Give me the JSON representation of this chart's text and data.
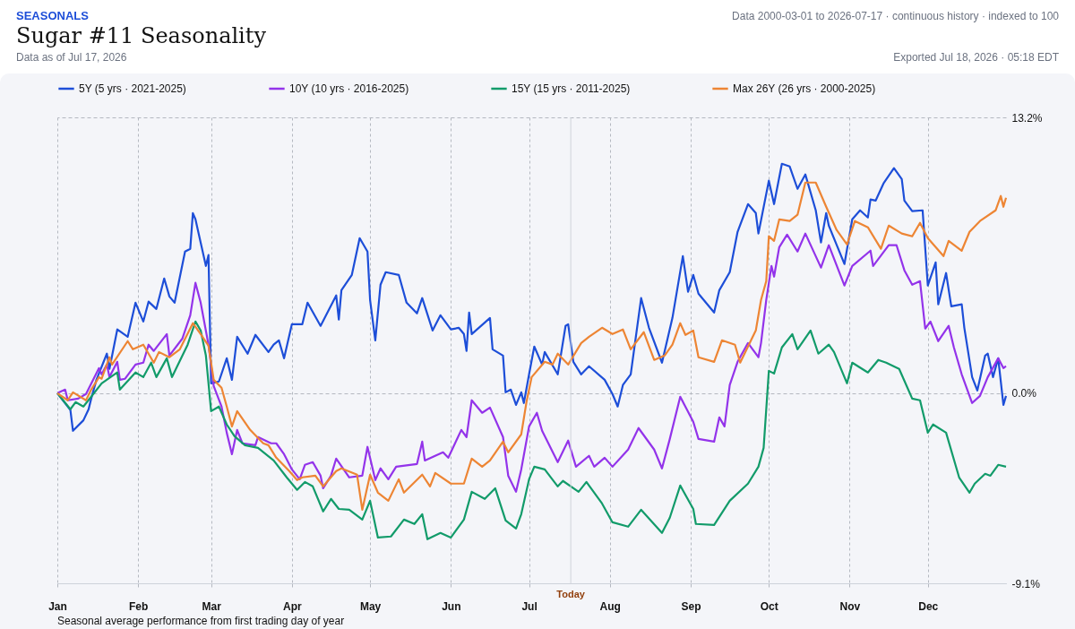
{
  "chart_data": {
    "type": "line",
    "title": "Sugar #11 Seasonality",
    "subtitle": "Data as of Jul 17, 2026",
    "annotations": [
      "SEASONALS",
      "Data 2000-03-01 to 2026-07-17 · continuous history · indexed to 100",
      "Exported Jul 18, 2026 · 05:18 EDT",
      "Seasonal average performance from first trading day of year"
    ],
    "xlim": [
      "--01-01",
      "--12-31"
    ],
    "xticks": [
      {
        "value": "--01-01",
        "label": "Jan"
      },
      {
        "value": "--02-01",
        "label": "Feb"
      },
      {
        "value": "--03-01",
        "label": "Mar"
      },
      {
        "value": "--04-01",
        "label": "Apr"
      },
      {
        "value": "--05-01",
        "label": "May"
      },
      {
        "value": "--06-01",
        "label": "Jun"
      },
      {
        "value": "--07-01",
        "label": "Jul"
      },
      {
        "value": "--08-01",
        "label": "Aug"
      },
      {
        "value": "--09-01",
        "label": "Sep"
      },
      {
        "value": "--10-01",
        "label": "Oct"
      },
      {
        "value": "--11-01",
        "label": "Nov"
      },
      {
        "value": "--12-01",
        "label": "Dec"
      }
    ],
    "ylim": [
      -9.1,
      13.2
    ],
    "yticks": [
      {
        "value": -9.1,
        "label": "-9.1%"
      },
      {
        "value": 0,
        "label": "0.0%"
      },
      {
        "value": 13.2,
        "label": "13.2%"
      }
    ],
    "grid": true,
    "legend": "top left",
    "ref_lines": [
      {
        "axis": "x",
        "value": "--07-17",
        "label": "Today"
      }
    ],
    "series": [
      {
        "name": "5Y (5 yrs · 2021-2025)",
        "color": "#1d4ed8",
        "x": [
          "--01-01",
          "--01-06",
          "--01-07",
          "--01-11",
          "--01-13",
          "--01-14",
          "--01-16",
          "--01-20",
          "--01-21",
          "--01-24",
          "--01-28",
          "--01-31",
          "--02-03",
          "--02-05",
          "--02-08",
          "--02-11",
          "--02-13",
          "--02-15",
          "--02-19",
          "--02-21",
          "--02-22",
          "--02-23",
          "--02-27",
          "--02-28",
          "--03-01",
          "--03-04",
          "--03-07",
          "--03-09",
          "--03-11",
          "--03-15",
          "--03-18",
          "--03-23",
          "--03-25",
          "--03-27",
          "--03-29",
          "--04-01",
          "--04-05",
          "--04-07",
          "--04-12",
          "--04-18",
          "--04-19",
          "--04-20",
          "--04-24",
          "--04-27",
          "--04-30",
          "--05-01",
          "--05-03",
          "--05-05",
          "--05-07",
          "--05-12",
          "--05-15",
          "--05-19",
          "--05-21",
          "--05-25",
          "--05-28",
          "--06-01",
          "--06-04",
          "--06-06",
          "--06-07",
          "--06-08",
          "--06-09",
          "--06-16",
          "--06-17",
          "--06-21",
          "--06-22",
          "--06-24",
          "--06-26",
          "--06-28",
          "--06-29",
          "--07-01",
          "--07-03",
          "--07-06",
          "--07-07",
          "--07-12",
          "--07-15",
          "--07-16",
          "--07-18",
          "--07-21",
          "--07-24",
          "--07-30",
          "--08-02",
          "--08-04",
          "--08-06",
          "--08-09",
          "--08-13",
          "--08-16",
          "--08-21",
          "--08-25",
          "--08-29",
          "--08-31",
          "--09-02",
          "--09-04",
          "--09-10",
          "--09-12",
          "--09-16",
          "--09-19",
          "--09-23",
          "--09-26",
          "--09-27",
          "--10-01",
          "--10-03",
          "--10-06",
          "--10-09",
          "--10-12",
          "--10-15",
          "--10-19",
          "--10-21",
          "--10-23",
          "--10-24",
          "--10-30",
          "--11-02",
          "--11-05",
          "--11-08",
          "--11-09",
          "--11-11",
          "--11-14",
          "--11-18",
          "--11-21",
          "--11-22",
          "--11-25",
          "--11-29",
          "--12-01",
          "--12-04",
          "--12-05",
          "--12-08",
          "--12-10",
          "--12-14",
          "--12-15",
          "--12-18",
          "--12-20",
          "--12-23",
          "--12-24",
          "--12-26",
          "--12-28",
          "--12-30",
          "--12-31"
        ],
        "values": [
          0,
          -0.8,
          -1.8,
          -1.3,
          -0.77,
          -0.26,
          0.64,
          1.89,
          1.16,
          3.05,
          2.7,
          4.33,
          3.43,
          4.38,
          4.03,
          5.49,
          4.63,
          4.33,
          6.78,
          6.91,
          8.62,
          8.32,
          6.09,
          6.61,
          0.47,
          0.56,
          1.67,
          0.64,
          2.7,
          1.89,
          2.79,
          1.97,
          2.32,
          2.53,
          1.67,
          3.3,
          3.3,
          4.33,
          3.22,
          4.68,
          3.52,
          4.93,
          5.66,
          7.42,
          6.78,
          4.46,
          2.53,
          5.19,
          5.79,
          5.66,
          4.33,
          3.82,
          4.55,
          3.0,
          3.73,
          3.05,
          3.13,
          2.83,
          2.02,
          3.86,
          2.83,
          3.6,
          2.1,
          1.8,
          0.04,
          0.17,
          -0.56,
          0.04,
          -0.47,
          0.9,
          2.23,
          1.37,
          1.97,
          0.9,
          3.22,
          3.3,
          1.5,
          0.9,
          1.29,
          0.64,
          -0.04,
          -0.64,
          0.39,
          0.9,
          4.55,
          3.13,
          1.46,
          3.6,
          6.56,
          4.85,
          5.66,
          4.76,
          3.86,
          4.93,
          5.79,
          7.72,
          9.05,
          8.62,
          7.64,
          10.17,
          9.05,
          10.98,
          10.85,
          9.78,
          10.47,
          8.75,
          7.21,
          8.62,
          8.02,
          6.18,
          8.32,
          8.75,
          8.41,
          9.27,
          9.22,
          10.04,
          10.77,
          10.25,
          9.22,
          8.71,
          8.75,
          5.15,
          6.26,
          4.25,
          5.75,
          4.16,
          4.25,
          3.13,
          0.77,
          0.13,
          1.8,
          1.89,
          0.77,
          1.67,
          -0.56,
          -0.13
        ]
      },
      {
        "name": "10Y (10 yrs · 2016-2025)",
        "color": "#9333ea",
        "x": [
          "--01-01",
          "--01-04",
          "--01-05",
          "--01-09",
          "--01-12",
          "--01-17",
          "--01-18",
          "--01-20",
          "--01-21",
          "--01-24",
          "--01-25",
          "--01-27",
          "--01-31",
          "--02-03",
          "--02-05",
          "--02-07",
          "--02-12",
          "--02-13",
          "--02-18",
          "--02-21",
          "--02-23",
          "--02-25",
          "--02-28",
          "--03-02",
          "--03-05",
          "--03-07",
          "--03-09",
          "--03-11",
          "--03-13",
          "--03-18",
          "--03-19",
          "--03-24",
          "--03-26",
          "--03-29",
          "--04-01",
          "--04-04",
          "--04-06",
          "--04-09",
          "--04-12",
          "--04-13",
          "--04-16",
          "--04-18",
          "--04-23",
          "--04-28",
          "--04-30",
          "--05-03",
          "--05-05",
          "--05-08",
          "--05-11",
          "--05-19",
          "--05-21",
          "--05-22",
          "--05-29",
          "--05-31",
          "--06-05",
          "--06-07",
          "--06-09",
          "--06-13",
          "--06-16",
          "--06-21",
          "--06-23",
          "--06-26",
          "--06-28",
          "--07-01",
          "--07-04",
          "--07-06",
          "--07-12",
          "--07-16",
          "--07-19",
          "--07-24",
          "--07-26",
          "--07-30",
          "--08-02",
          "--08-08",
          "--08-12",
          "--08-18",
          "--08-21",
          "--08-24",
          "--08-28",
          "--09-02",
          "--09-04",
          "--09-10",
          "--09-12",
          "--09-14",
          "--09-16",
          "--09-19",
          "--09-23",
          "--09-27",
          "--09-28",
          "--09-30",
          "--10-02",
          "--10-03",
          "--10-05",
          "--10-08",
          "--10-12",
          "--10-15",
          "--10-21",
          "--10-24",
          "--10-30",
          "--11-02",
          "--11-09",
          "--11-10",
          "--11-16",
          "--11-19",
          "--11-22",
          "--11-25",
          "--11-28",
          "--11-30",
          "--12-02",
          "--12-05",
          "--12-09",
          "--12-11",
          "--12-14",
          "--12-18",
          "--12-21",
          "--12-24",
          "--12-28",
          "--12-30",
          "--12-31"
        ],
        "values": [
          0,
          0.17,
          -0.34,
          -0.26,
          -0.04,
          1.2,
          0.9,
          1.37,
          0.77,
          1.5,
          0.64,
          0.69,
          1.37,
          1.46,
          2.32,
          2.02,
          2.83,
          1.8,
          2.62,
          3.73,
          5.28,
          4.33,
          2.32,
          0.34,
          -0.64,
          -1.89,
          -2.92,
          -1.76,
          -2.4,
          -2.49,
          -2.1,
          -2.4,
          -2.4,
          -2.92,
          -3.65,
          -4.12,
          -3.43,
          -3.3,
          -3.95,
          -4.55,
          -3.95,
          -3.13,
          -4.03,
          -3.95,
          -2.57,
          -4.16,
          -3.6,
          -4.12,
          -3.52,
          -3.39,
          -2.32,
          -3.22,
          -2.83,
          -3.09,
          -1.76,
          -2.1,
          -0.34,
          -0.94,
          -0.69,
          -2.1,
          -3.95,
          -4.72,
          -3.65,
          -1.59,
          -0.94,
          -1.8,
          -3.3,
          -2.27,
          -3.52,
          -3.0,
          -3.52,
          -3.09,
          -3.52,
          -2.7,
          -1.67,
          -2.7,
          -3.6,
          -2.19,
          -0.17,
          -1.37,
          -2.19,
          -2.32,
          -1.16,
          -1.59,
          0.39,
          1.5,
          2.4,
          1.72,
          2.4,
          4.46,
          6.09,
          5.58,
          6.99,
          7.59,
          6.78,
          7.64,
          6.01,
          7.08,
          5.15,
          6.09,
          6.82,
          6.09,
          7.08,
          7.08,
          5.88,
          5.19,
          5.36,
          3.09,
          3.43,
          2.49,
          3.22,
          2.19,
          0.9,
          -0.47,
          -0.13,
          0.77,
          1.67,
          1.2,
          1.29
        ]
      },
      {
        "name": "15Y (15 yrs · 2011-2025)",
        "color": "#129b6a",
        "x": [
          "--01-01",
          "--01-06",
          "--01-08",
          "--01-11",
          "--01-14",
          "--01-18",
          "--01-24",
          "--01-25",
          "--01-31",
          "--02-03",
          "--02-06",
          "--02-08",
          "--02-12",
          "--02-14",
          "--02-20",
          "--02-23",
          "--02-25",
          "--02-27",
          "--03-01",
          "--03-04",
          "--03-07",
          "--03-10",
          "--03-14",
          "--03-19",
          "--03-25",
          "--03-30",
          "--04-03",
          "--04-06",
          "--04-09",
          "--04-13",
          "--04-16",
          "--04-19",
          "--04-23",
          "--04-28",
          "--05-01",
          "--05-04",
          "--05-09",
          "--05-14",
          "--05-18",
          "--05-21",
          "--05-23",
          "--05-28",
          "--06-01",
          "--06-06",
          "--06-09",
          "--06-14",
          "--06-18",
          "--06-22",
          "--06-26",
          "--06-28",
          "--07-01",
          "--07-03",
          "--07-07",
          "--07-12",
          "--07-14",
          "--07-20",
          "--07-23",
          "--07-29",
          "--08-02",
          "--08-08",
          "--08-13",
          "--08-21",
          "--08-24",
          "--08-28",
          "--09-02",
          "--09-03",
          "--09-10",
          "--09-16",
          "--09-23",
          "--09-27",
          "--09-29",
          "--10-01",
          "--10-03",
          "--10-06",
          "--10-10",
          "--10-12",
          "--10-17",
          "--10-20",
          "--10-24",
          "--10-26",
          "--10-31",
          "--11-02",
          "--11-08",
          "--11-12",
          "--11-15",
          "--11-20",
          "--11-25",
          "--11-28",
          "--12-01",
          "--12-03",
          "--12-08",
          "--12-13",
          "--12-17",
          "--12-19",
          "--12-23",
          "--12-25",
          "--12-28",
          "--12-31"
        ],
        "values": [
          0,
          -0.77,
          -0.43,
          -0.64,
          -0.17,
          0.47,
          0.99,
          0.17,
          0.99,
          0.77,
          1.46,
          0.77,
          1.67,
          0.77,
          2.32,
          3.43,
          3.0,
          1.8,
          -0.86,
          -0.64,
          -1.5,
          -2.06,
          -2.49,
          -2.62,
          -3.22,
          -4.03,
          -4.63,
          -4.25,
          -4.46,
          -5.66,
          -5.06,
          -5.54,
          -5.58,
          -6.05,
          -5.15,
          -6.91,
          -6.86,
          -6.05,
          -6.26,
          -5.79,
          -6.99,
          -6.69,
          -6.91,
          -6.05,
          -4.72,
          -5.06,
          -4.55,
          -6.09,
          -6.48,
          -5.79,
          -4.12,
          -3.52,
          -3.65,
          -4.46,
          -4.2,
          -4.72,
          -4.25,
          -5.28,
          -6.18,
          -6.39,
          -5.58,
          -6.69,
          -5.96,
          -4.42,
          -5.54,
          -6.26,
          -6.31,
          -5.15,
          -4.33,
          -3.52,
          -2.62,
          1.07,
          0.94,
          2.19,
          2.83,
          2.1,
          3.0,
          1.89,
          2.32,
          1.97,
          0.47,
          1.46,
          0.99,
          1.59,
          1.46,
          1.16,
          -0.26,
          -0.34,
          -1.89,
          -1.5,
          -1.89,
          -4.03,
          -4.76,
          -4.33,
          -3.86,
          -3.95,
          -3.43,
          -3.52
        ]
      },
      {
        "name": "Max 26Y (26 yrs · 2000-2025)",
        "color": "#ed8534",
        "x": [
          "--01-01",
          "--01-05",
          "--01-07",
          "--01-12",
          "--01-14",
          "--01-17",
          "--01-18",
          "--01-21",
          "--01-22",
          "--01-28",
          "--01-30",
          "--02-03",
          "--02-07",
          "--02-09",
          "--02-13",
          "--02-17",
          "--02-22",
          "--02-25",
          "--02-28",
          "--03-02",
          "--03-05",
          "--03-07",
          "--03-09",
          "--03-11",
          "--03-16",
          "--03-21",
          "--03-23",
          "--03-26",
          "--03-31",
          "--04-03",
          "--04-05",
          "--04-10",
          "--04-13",
          "--04-18",
          "--04-20",
          "--04-26",
          "--04-28",
          "--05-01",
          "--05-04",
          "--05-08",
          "--05-12",
          "--05-14",
          "--05-21",
          "--05-24",
          "--05-26",
          "--06-01",
          "--06-06",
          "--06-09",
          "--06-13",
          "--06-16",
          "--06-21",
          "--06-23",
          "--06-28",
          "--06-30",
          "--07-02",
          "--07-07",
          "--07-10",
          "--07-12",
          "--07-16",
          "--07-21",
          "--07-24",
          "--07-29",
          "--08-02",
          "--08-06",
          "--08-09",
          "--08-14",
          "--08-18",
          "--08-22",
          "--08-25",
          "--08-28",
          "--08-30",
          "--09-02",
          "--09-04",
          "--09-10",
          "--09-13",
          "--09-18",
          "--09-20",
          "--09-26",
          "--09-28",
          "--09-30",
          "--10-01",
          "--10-03",
          "--10-05",
          "--10-09",
          "--10-12",
          "--10-15",
          "--10-19",
          "--10-23",
          "--10-27",
          "--10-31",
          "--11-03",
          "--11-08",
          "--11-13",
          "--11-16",
          "--11-21",
          "--11-25",
          "--11-28",
          "--12-01",
          "--12-07",
          "--12-09",
          "--12-14",
          "--12-17",
          "--12-21",
          "--12-27",
          "--12-29",
          "--12-30",
          "--12-31"
        ],
        "values": [
          0,
          -0.34,
          0.04,
          -0.34,
          0.17,
          0.77,
          0.69,
          1.72,
          1.37,
          2.49,
          2.1,
          2.32,
          1.46,
          1.97,
          1.72,
          2.1,
          3.35,
          2.83,
          2.27,
          0.64,
          0.26,
          -0.64,
          -1.59,
          -0.86,
          -1.76,
          -2.4,
          -2.49,
          -3.09,
          -3.73,
          -4.16,
          -4.03,
          -3.95,
          -4.46,
          -3.73,
          -3.6,
          -3.9,
          -5.58,
          -3.9,
          -4.76,
          -5.15,
          -4.12,
          -4.76,
          -3.9,
          -4.46,
          -3.82,
          -4.33,
          -4.33,
          -3.13,
          -3.52,
          -3.22,
          -2.32,
          -2.83,
          -1.97,
          -0.43,
          0.77,
          1.5,
          1.37,
          1.89,
          1.37,
          2.4,
          2.7,
          3.13,
          2.83,
          3.05,
          2.1,
          2.92,
          1.59,
          1.8,
          2.32,
          3.35,
          2.79,
          3.0,
          1.72,
          1.5,
          2.53,
          2.32,
          1.46,
          3.0,
          4.46,
          5.36,
          7.51,
          7.29,
          8.32,
          8.24,
          8.54,
          10.08,
          10.08,
          8.92,
          7.81,
          7.12,
          8.24,
          7.94,
          6.91,
          8.02,
          7.64,
          7.51,
          8.15,
          7.42,
          6.56,
          7.29,
          6.82,
          7.72,
          8.24,
          8.75,
          9.44,
          8.92,
          9.35
        ]
      }
    ]
  }
}
